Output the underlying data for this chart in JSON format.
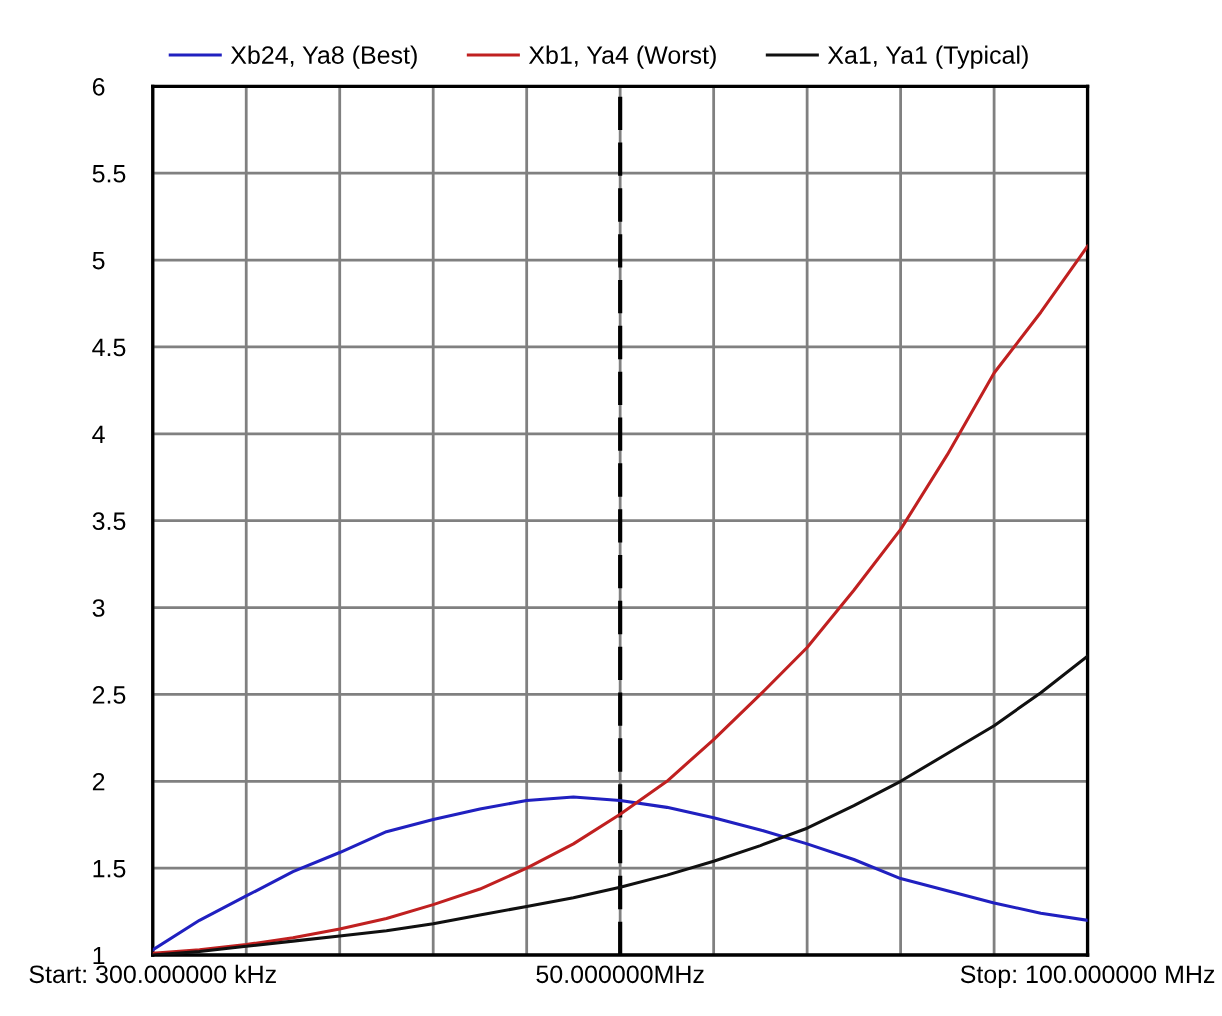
{
  "chart_data": {
    "type": "line",
    "ylim": [
      1,
      6
    ],
    "categories": [
      "Start: 300.000000 kHz",
      null,
      null,
      null,
      null,
      null,
      null,
      null,
      null,
      null,
      "50.000000MHz",
      null,
      null,
      null,
      null,
      null,
      null,
      null,
      null,
      null,
      "Stop: 100.000000 MHz"
    ],
    "yticks": [
      1,
      1.5,
      2,
      2.5,
      3,
      3.5,
      4,
      4.5,
      5,
      5.5,
      6
    ],
    "grid": true,
    "legend": "top",
    "marker": "none",
    "line_style": "solid",
    "ref_lines": [
      {
        "axis": "x",
        "value": "50.000000MHz",
        "color": "#000000",
        "line_style": "dashed"
      }
    ],
    "series": [
      {
        "name": "Xb24, Ya8 (Best)",
        "color": "#2020c0",
        "values": [
          1.03,
          1.2,
          1.34,
          1.48,
          1.59,
          1.71,
          1.78,
          1.84,
          1.89,
          1.91,
          1.89,
          1.85,
          1.79,
          1.72,
          1.64,
          1.55,
          1.44,
          1.37,
          1.3,
          1.24,
          1.2
        ]
      },
      {
        "name": "Xb1, Ya4 (Worst)",
        "color": "#c02020",
        "values": [
          1.01,
          1.03,
          1.06,
          1.1,
          1.15,
          1.21,
          1.29,
          1.38,
          1.5,
          1.64,
          1.81,
          2.0,
          2.24,
          2.5,
          2.77,
          3.1,
          3.45,
          3.88,
          4.35,
          4.7,
          5.08
        ]
      },
      {
        "name": "Xa1, Ya1 (Typical)",
        "color": "#101010",
        "values": [
          1.0,
          1.02,
          1.05,
          1.08,
          1.11,
          1.14,
          1.18,
          1.23,
          1.28,
          1.33,
          1.39,
          1.46,
          1.54,
          1.63,
          1.73,
          1.86,
          2.0,
          2.16,
          2.32,
          2.51,
          2.72
        ]
      }
    ]
  }
}
